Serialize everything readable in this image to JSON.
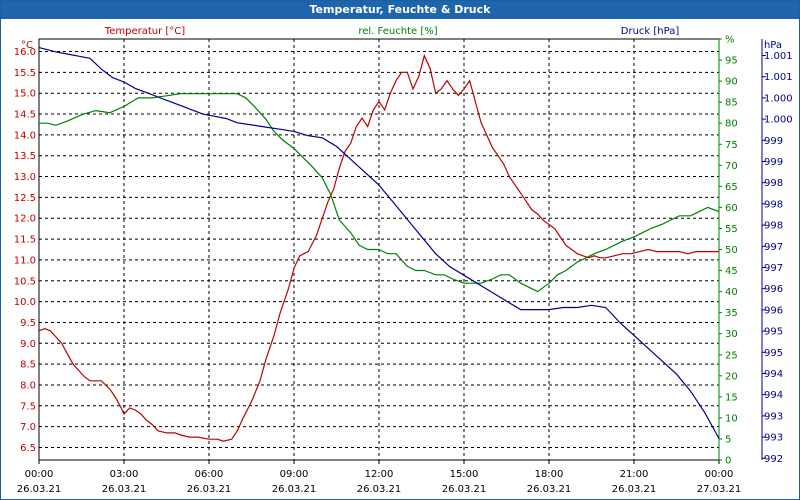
{
  "window": {
    "title": "Temperatur, Feuchte & Druck"
  },
  "chart_data": {
    "type": "line",
    "title": "Temperatur, Feuchte & Druck",
    "x_ticks": [
      {
        "time": "00:00",
        "date": "26.03.21"
      },
      {
        "time": "03:00",
        "date": "26.03.21"
      },
      {
        "time": "06:00",
        "date": "26.03.21"
      },
      {
        "time": "09:00",
        "date": "26.03.21"
      },
      {
        "time": "12:00",
        "date": "26.03.21"
      },
      {
        "time": "15:00",
        "date": "26.03.21"
      },
      {
        "time": "18:00",
        "date": "26.03.21"
      },
      {
        "time": "21:00",
        "date": "26.03.21"
      },
      {
        "time": "00:00",
        "date": "27.03.21"
      }
    ],
    "x_range_hours": [
      0,
      24
    ],
    "grid": true,
    "axes": {
      "temperature": {
        "unit": "°C",
        "ylim": [
          6.2,
          16.3
        ],
        "ticks": [
          "16.0",
          "15.5",
          "15.0",
          "14.5",
          "14.0",
          "13.5",
          "13.0",
          "12.5",
          "12.0",
          "11.5",
          "11.0",
          "10.5",
          "10.0",
          "9.5",
          "9.0",
          "8.5",
          "8.0",
          "7.5",
          "7.0",
          "6.5"
        ]
      },
      "humidity": {
        "unit": "%",
        "ylim": [
          0,
          100
        ],
        "ticks": [
          "0",
          "5",
          "10",
          "15",
          "20",
          "25",
          "30",
          "35",
          "40",
          "45",
          "50",
          "55",
          "60",
          "65",
          "70",
          "75",
          "80",
          "85",
          "90",
          "95",
          "%"
        ]
      },
      "pressure": {
        "unit": "hPa",
        "ylim": [
          991.5,
          1001.3
        ],
        "ticks": [
          "1.001",
          "1.001",
          "1.000",
          "1.000",
          "999",
          "999",
          "998",
          "998",
          "998",
          "997",
          "997",
          "996",
          "996",
          "995",
          "995",
          "994",
          "994",
          "993",
          "993",
          "992"
        ]
      }
    },
    "series": [
      {
        "name": "Temperatur [°C]",
        "color": "#c00000",
        "axis": "temperature",
        "x": [
          0,
          0.2,
          0.4,
          0.6,
          0.8,
          1.0,
          1.2,
          1.4,
          1.6,
          1.8,
          2.0,
          2.2,
          2.5,
          2.7,
          2.9,
          3.0,
          3.2,
          3.4,
          3.6,
          3.8,
          4.0,
          4.2,
          4.5,
          4.8,
          5.0,
          5.3,
          5.6,
          6.0,
          6.3,
          6.5,
          6.8,
          7.0,
          7.2,
          7.5,
          7.8,
          8.0,
          8.3,
          8.5,
          8.8,
          9.0,
          9.2,
          9.5,
          9.8,
          10.0,
          10.2,
          10.4,
          10.6,
          10.8,
          11.0,
          11.2,
          11.4,
          11.6,
          11.8,
          12.0,
          12.2,
          12.4,
          12.6,
          12.8,
          13.0,
          13.2,
          13.4,
          13.6,
          13.8,
          14.0,
          14.2,
          14.4,
          14.6,
          14.8,
          15.0,
          15.2,
          15.4,
          15.6,
          15.8,
          16.0,
          16.2,
          16.4,
          16.6,
          16.8,
          17.0,
          17.2,
          17.4,
          17.6,
          17.8,
          18.0,
          18.2,
          18.4,
          18.6,
          18.8,
          19.0,
          19.2,
          19.4,
          19.6,
          19.8,
          20.0,
          20.3,
          20.6,
          20.9,
          21.2,
          21.5,
          21.8,
          22.0,
          22.3,
          22.6,
          22.9,
          23.2,
          23.5,
          23.8,
          24.0
        ],
        "y": [
          9.3,
          9.35,
          9.3,
          9.15,
          9.0,
          8.75,
          8.5,
          8.35,
          8.2,
          8.1,
          8.1,
          8.1,
          7.9,
          7.7,
          7.45,
          7.3,
          7.45,
          7.4,
          7.3,
          7.15,
          7.05,
          6.9,
          6.85,
          6.85,
          6.8,
          6.75,
          6.75,
          6.7,
          6.7,
          6.65,
          6.7,
          6.9,
          7.2,
          7.6,
          8.1,
          8.6,
          9.2,
          9.7,
          10.3,
          10.8,
          11.1,
          11.2,
          11.6,
          12.0,
          12.4,
          12.7,
          13.2,
          13.6,
          13.8,
          14.2,
          14.4,
          14.2,
          14.6,
          14.8,
          14.6,
          15.0,
          15.3,
          15.5,
          15.5,
          15.1,
          15.4,
          15.9,
          15.6,
          15.0,
          15.1,
          15.3,
          15.1,
          14.95,
          15.1,
          15.3,
          14.8,
          14.3,
          14.0,
          13.7,
          13.5,
          13.3,
          13.0,
          12.8,
          12.6,
          12.4,
          12.2,
          12.1,
          11.95,
          11.85,
          11.75,
          11.55,
          11.35,
          11.25,
          11.15,
          11.1,
          11.05,
          11.1,
          11.05,
          11.05,
          11.1,
          11.15,
          11.15,
          11.2,
          11.25,
          11.2,
          11.2,
          11.2,
          11.2,
          11.15,
          11.2,
          11.2,
          11.2,
          11.2
        ]
      },
      {
        "name": "rel. Feuchte [%]",
        "color": "#008000",
        "axis": "humidity",
        "x": [
          0,
          0.3,
          0.6,
          1.0,
          1.5,
          2.0,
          2.5,
          3.0,
          3.5,
          4.0,
          4.5,
          5.0,
          5.5,
          6.0,
          6.5,
          7.0,
          7.3,
          7.6,
          8.0,
          8.3,
          8.6,
          9.0,
          9.3,
          9.6,
          10.0,
          10.3,
          10.6,
          11.0,
          11.3,
          11.6,
          12.0,
          12.3,
          12.6,
          13.0,
          13.3,
          13.6,
          14.0,
          14.3,
          14.6,
          15.0,
          15.3,
          15.6,
          16.0,
          16.3,
          16.6,
          17.0,
          17.3,
          17.6,
          18.0,
          18.3,
          18.6,
          19.0,
          19.3,
          19.6,
          20.0,
          20.3,
          20.6,
          21.0,
          21.3,
          21.6,
          22.0,
          22.3,
          22.6,
          23.0,
          23.3,
          23.6,
          24.0
        ],
        "y": [
          80,
          80,
          79.5,
          80.5,
          82,
          83,
          82.5,
          84,
          86,
          86,
          86.5,
          87,
          87,
          87,
          87,
          87,
          86,
          84,
          81,
          78,
          76,
          74,
          72,
          70,
          67,
          63,
          57,
          54,
          51,
          50,
          50,
          49,
          49,
          46,
          45,
          45,
          44,
          44,
          43,
          42,
          42,
          42,
          43,
          44,
          44,
          42,
          41,
          40,
          42,
          44,
          45,
          47,
          48,
          49,
          50,
          51,
          52,
          53,
          54,
          55,
          56,
          57,
          58,
          58,
          59,
          60,
          59
        ]
      },
      {
        "name": "Druck [hPa]",
        "color": "#00008b",
        "axis": "pressure",
        "x": [
          0,
          0.3,
          0.6,
          1.0,
          1.4,
          1.8,
          2.2,
          2.6,
          3.0,
          3.4,
          3.8,
          4.2,
          4.6,
          5.0,
          5.4,
          5.8,
          6.2,
          6.6,
          7.0,
          7.5,
          8.0,
          8.5,
          9.0,
          9.5,
          10.0,
          10.5,
          11.0,
          11.5,
          12.0,
          12.5,
          13.0,
          13.5,
          14.0,
          14.5,
          15.0,
          15.5,
          16.0,
          16.5,
          17.0,
          17.5,
          18.0,
          18.5,
          19.0,
          19.5,
          20.0,
          20.5,
          21.0,
          21.5,
          22.0,
          22.5,
          23.0,
          23.5,
          24.0
        ],
        "y": [
          1001.1,
          1001.05,
          1001.0,
          1000.95,
          1000.9,
          1000.85,
          1000.6,
          1000.4,
          1000.3,
          1000.15,
          1000.05,
          999.95,
          999.85,
          999.75,
          999.65,
          999.55,
          999.5,
          999.45,
          999.35,
          999.3,
          999.25,
          999.2,
          999.15,
          999.05,
          999.0,
          998.8,
          998.5,
          998.2,
          997.9,
          997.5,
          997.1,
          996.7,
          996.3,
          996.0,
          995.8,
          995.6,
          995.4,
          995.2,
          995.0,
          995.0,
          995.0,
          995.05,
          995.05,
          995.1,
          995.05,
          994.7,
          994.4,
          994.1,
          993.8,
          993.5,
          993.1,
          992.6,
          992.0
        ]
      }
    ]
  }
}
